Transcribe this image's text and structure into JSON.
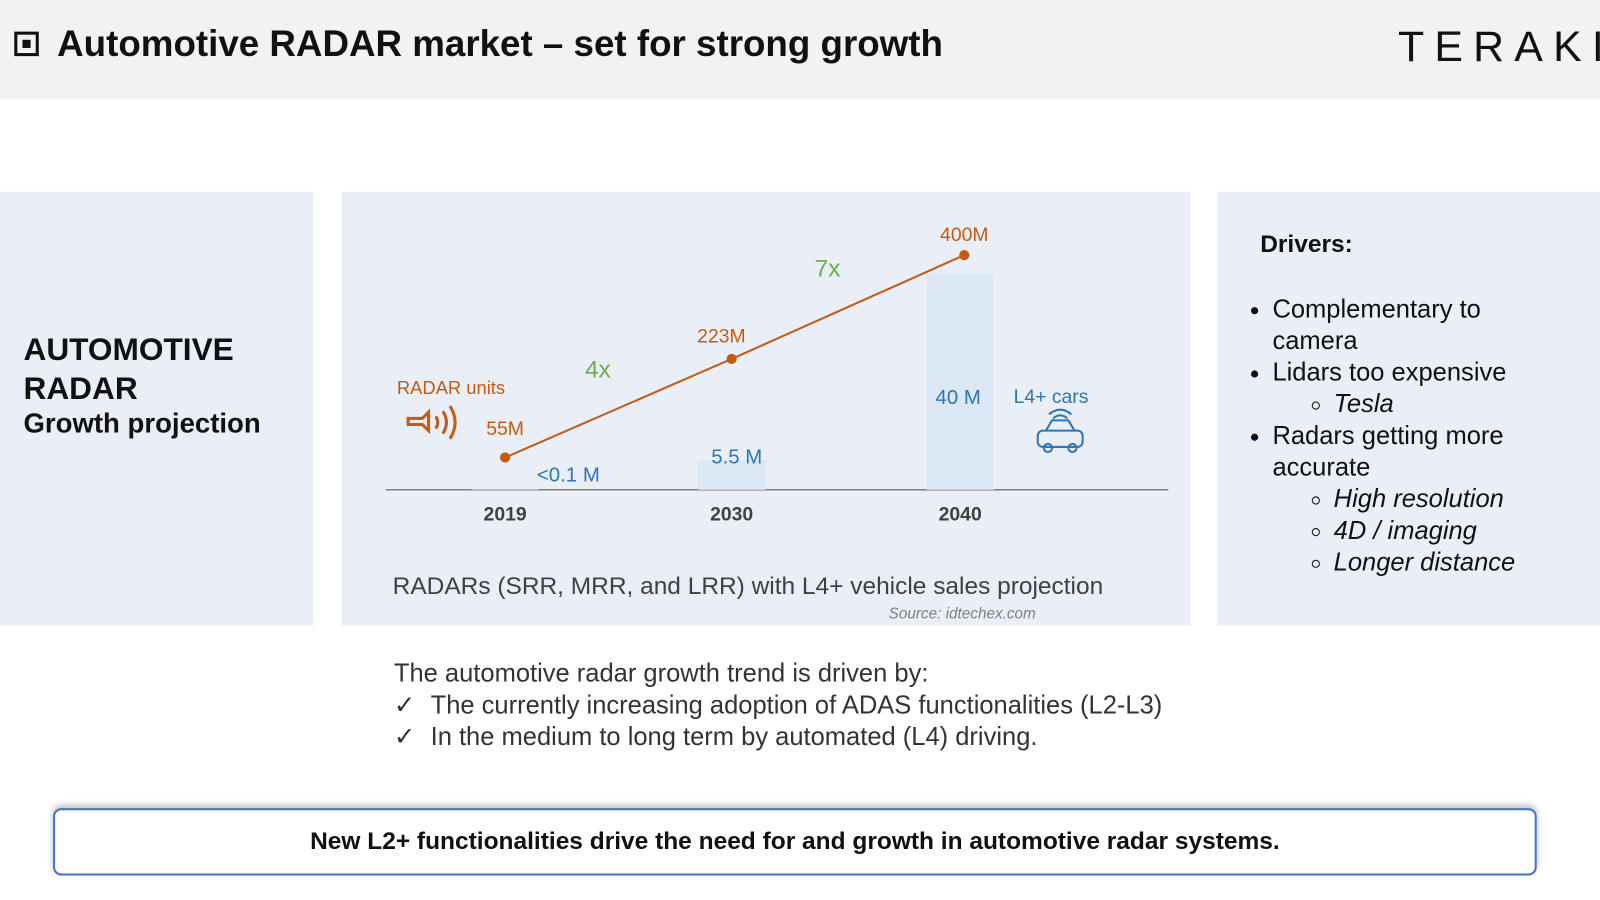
{
  "header": {
    "title": "Automotive RADAR market – set for strong growth",
    "logo": "TERAKI"
  },
  "left_panel": {
    "title_lines": [
      "AUTOMOTIVE",
      "RADAR"
    ],
    "subtitle": "Growth projection"
  },
  "chart_data": {
    "type": "line",
    "categories": [
      "2019",
      "2030",
      "2040"
    ],
    "series": [
      {
        "name": "RADAR units",
        "type": "line",
        "color": "#c55a11",
        "values": [
          55,
          223,
          400
        ],
        "value_labels": [
          "55M",
          "223M",
          "400M"
        ]
      },
      {
        "name": "L4+ cars",
        "type": "bar",
        "color": "#dce8f6",
        "label_color": "#2e75b6",
        "values": [
          0.1,
          5.5,
          40
        ],
        "value_labels": [
          "<0.1 M",
          "5.5 M",
          "40 M"
        ]
      }
    ],
    "growth_labels": [
      "4x",
      "7x"
    ],
    "growth_color": "#70ad47",
    "caption": "RADARs (SRR, MRR, and LRR) with L4+ vehicle sales projection",
    "source": "Source: idtechex.com"
  },
  "drivers": {
    "title": "Drivers:",
    "items": [
      {
        "text": "Complementary to camera",
        "sub": []
      },
      {
        "text": "Lidars too expensive",
        "sub": [
          "Tesla"
        ]
      },
      {
        "text": "Radars getting more accurate",
        "sub": [
          "High resolution",
          "4D / imaging",
          "Longer distance"
        ]
      }
    ]
  },
  "summary": {
    "intro": "The automotive radar growth trend is driven by:",
    "points": [
      "The currently increasing adoption of ADAS functionalities (L2-L3)",
      "In the medium to long term by automated (L4) driving."
    ]
  },
  "callout": "New L2+ functionalities drive the need for and growth in automotive radar systems."
}
